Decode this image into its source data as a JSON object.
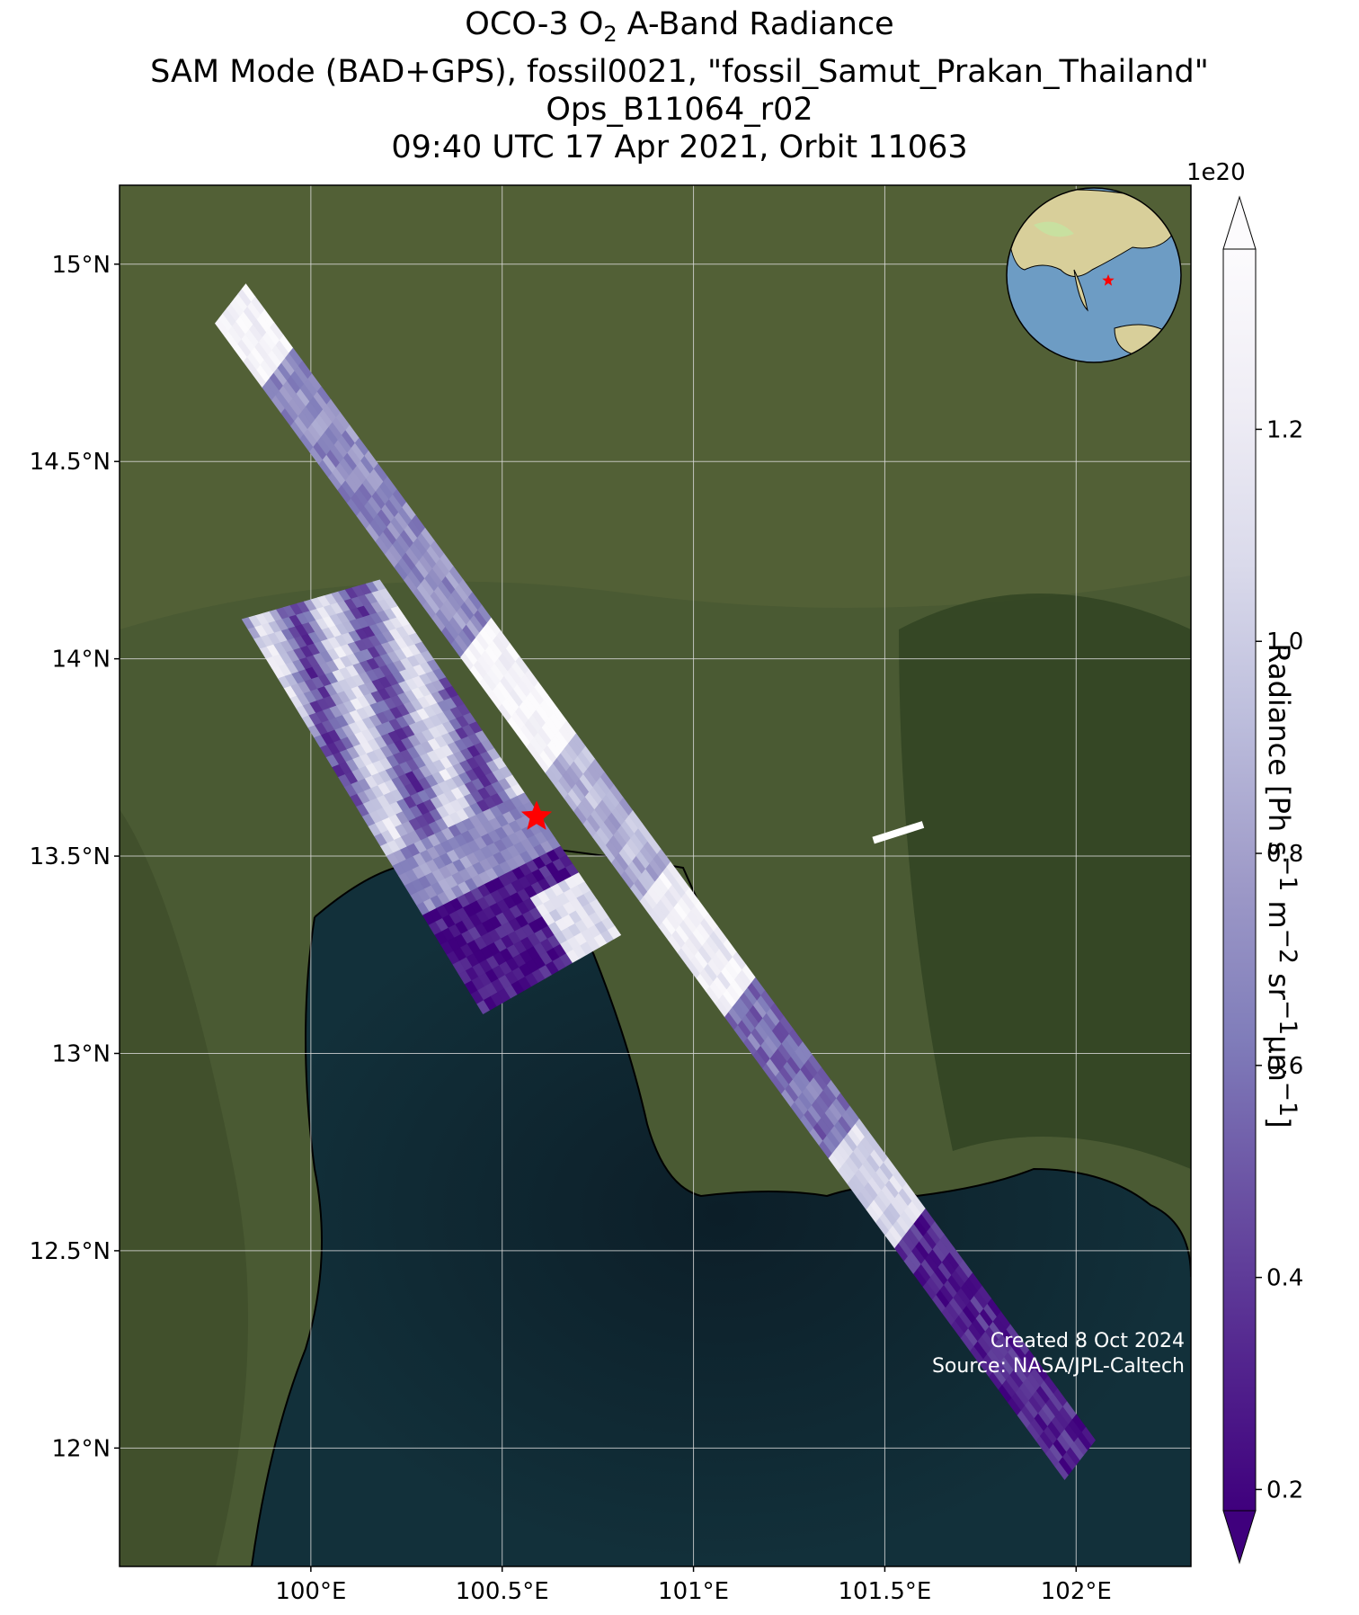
{
  "title": {
    "line1_prefix": "OCO-3 O",
    "line1_sub": "2",
    "line1_suffix": " A-Band Radiance",
    "line2": "SAM Mode (BAD+GPS), fossil0021, \"fossil_Samut_Prakan_Thailand\"",
    "line3": "Ops_B11064_r02",
    "line4": "09:40 UTC 17 Apr 2021, Orbit 11063"
  },
  "map": {
    "lon_range": [
      99.5,
      102.3
    ],
    "lat_range": [
      11.7,
      15.2
    ],
    "lon_ticks": [
      {
        "value": 100.0,
        "label": "100°E"
      },
      {
        "value": 100.5,
        "label": "100.5°E"
      },
      {
        "value": 101.0,
        "label": "101°E"
      },
      {
        "value": 101.5,
        "label": "101.5°E"
      },
      {
        "value": 102.0,
        "label": "102°E"
      }
    ],
    "lat_ticks": [
      {
        "value": 15.0,
        "label": "15°N"
      },
      {
        "value": 14.5,
        "label": "14.5°N"
      },
      {
        "value": 14.0,
        "label": "14°N"
      },
      {
        "value": 13.5,
        "label": "13.5°N"
      },
      {
        "value": 13.0,
        "label": "13°N"
      },
      {
        "value": 12.5,
        "label": "12.5°N"
      },
      {
        "value": 12.0,
        "label": "12°N"
      }
    ],
    "grid": true,
    "target_marker": {
      "lon": 100.59,
      "lat": 13.6,
      "color": "#ff0000"
    },
    "swaths": [
      {
        "name": "east-swath",
        "corners": [
          [
            99.75,
            14.85
          ],
          [
            99.83,
            14.95
          ],
          [
            102.05,
            12.02
          ],
          [
            101.97,
            11.92
          ]
        ]
      },
      {
        "name": "west-swath",
        "corners": [
          [
            99.82,
            14.1
          ],
          [
            100.18,
            14.2
          ],
          [
            100.81,
            13.3
          ],
          [
            100.45,
            13.1
          ]
        ]
      }
    ],
    "extra_footprint": {
      "lon1": 101.47,
      "lat1": 13.54,
      "lon2": 101.6,
      "lat2": 13.58
    },
    "colors": {
      "ocean": "#0f2630",
      "land": "#4a5a33",
      "grid": "#dddddd",
      "coast": "#000000"
    }
  },
  "colorbar": {
    "label_html": "Radiance [Ph s<sup>−1</sup> m<sup>−2</sup> sr<sup>−1</sup>μm<sup>−1</sup>]",
    "label_text": "Radiance [Ph s−1 m−2 sr−1μm−1]",
    "exponent": "1e20",
    "min": 0.18,
    "max": 1.37,
    "ticks": [
      {
        "value": 0.2,
        "label": "0.2"
      },
      {
        "value": 0.4,
        "label": "0.4"
      },
      {
        "value": 0.6,
        "label": "0.6"
      },
      {
        "value": 0.8,
        "label": "0.8"
      },
      {
        "value": 1.0,
        "label": "1.0"
      },
      {
        "value": 1.2,
        "label": "1.2"
      }
    ],
    "extend": "both",
    "colormap": [
      "#3f007d",
      "#54278f",
      "#6a51a3",
      "#807dba",
      "#9e9ac8",
      "#bcbddc",
      "#dadaeb",
      "#efedf5",
      "#fcfbfd"
    ]
  },
  "inset": {
    "description_icon": "globe-icon",
    "marker_color": "#ff0000"
  },
  "credit": {
    "line1": "Created 8 Oct 2024",
    "line2": "Source: NASA/JPL-Caltech"
  }
}
